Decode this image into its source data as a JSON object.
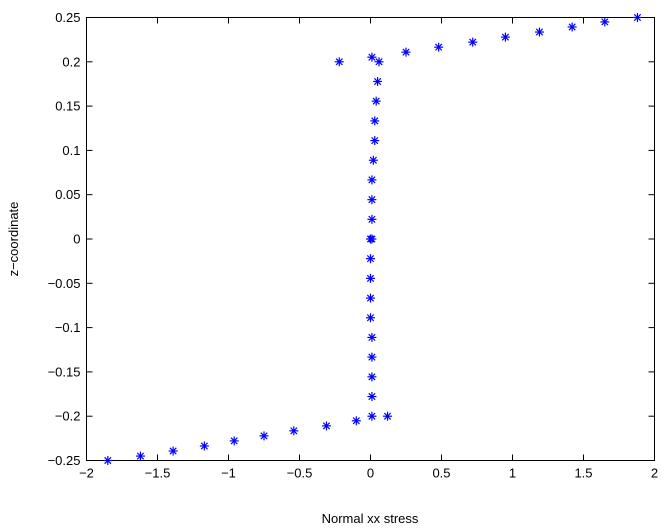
{
  "chart_data": {
    "type": "scatter",
    "title": "",
    "xlabel": "Normal xx stress",
    "ylabel": "z−coordinate",
    "xlim": [
      -2,
      2
    ],
    "ylim": [
      -0.25,
      0.25
    ],
    "grid": false,
    "xticks": [
      -2,
      -1.5,
      -1,
      -0.5,
      0,
      0.5,
      1,
      1.5,
      2
    ],
    "xtick_labels": [
      "−2",
      "−1.5",
      "−1",
      "−0.5",
      "0",
      "0.5",
      "1",
      "1.5",
      "2"
    ],
    "yticks": [
      -0.25,
      -0.2,
      -0.15,
      -0.1,
      -0.05,
      0,
      0.05,
      0.1,
      0.15,
      0.2,
      0.25
    ],
    "ytick_labels": [
      "−0.25",
      "−0.2",
      "−0.15",
      "−0.1",
      "−0.05",
      "0",
      "0.05",
      "0.1",
      "0.15",
      "0.2",
      "0.25"
    ],
    "marker": "asterisk",
    "marker_color": "#0000ff",
    "series": [
      {
        "points": [
          [
            -1.85,
            -0.25
          ],
          [
            -1.62,
            -0.245
          ],
          [
            -1.39,
            -0.2393
          ],
          [
            -1.17,
            -0.2336
          ],
          [
            -0.96,
            -0.2279
          ],
          [
            -0.75,
            -0.2222
          ],
          [
            -0.54,
            -0.2165
          ],
          [
            -0.31,
            -0.2109
          ],
          [
            -0.1,
            -0.2052
          ],
          [
            0.01,
            -0.2
          ],
          [
            0.12,
            -0.2
          ],
          [
            0.01,
            -0.1778
          ],
          [
            0.01,
            -0.1556
          ],
          [
            0.01,
            -0.1333
          ],
          [
            0.01,
            -0.1111
          ],
          [
            0.0,
            -0.0889
          ],
          [
            0.0,
            -0.0667
          ],
          [
            0.0,
            -0.0444
          ],
          [
            0.0,
            -0.0222
          ],
          [
            0.0,
            0.0
          ],
          [
            0.01,
            0.0
          ],
          [
            0.01,
            0.0222
          ],
          [
            0.01,
            0.0444
          ],
          [
            0.01,
            0.0667
          ],
          [
            0.02,
            0.0889
          ],
          [
            0.03,
            0.1111
          ],
          [
            0.03,
            0.1333
          ],
          [
            0.04,
            0.1556
          ],
          [
            0.05,
            0.1778
          ],
          [
            0.06,
            0.2
          ],
          [
            0.01,
            0.2052
          ],
          [
            -0.22,
            0.2
          ],
          [
            0.25,
            0.2109
          ],
          [
            0.48,
            0.2165
          ],
          [
            0.72,
            0.2222
          ],
          [
            0.95,
            0.2279
          ],
          [
            1.19,
            0.2336
          ],
          [
            1.42,
            0.2393
          ],
          [
            1.65,
            0.245
          ],
          [
            1.88,
            0.25
          ]
        ]
      }
    ]
  }
}
